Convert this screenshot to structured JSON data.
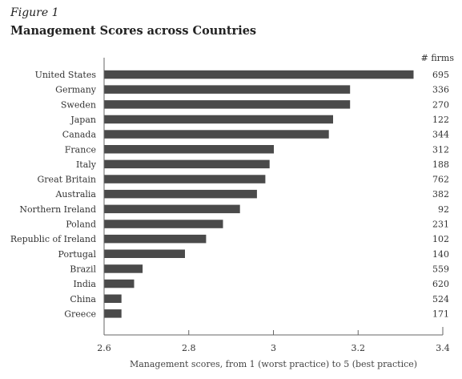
{
  "figure": {
    "label": "Figure 1",
    "title": "Management Scores across Countries"
  },
  "chart_data": {
    "type": "bar",
    "orientation": "horizontal",
    "categories": [
      "United States",
      "Germany",
      "Sweden",
      "Japan",
      "Canada",
      "France",
      "Italy",
      "Great Britain",
      "Australia",
      "Northern Ireland",
      "Poland",
      "Republic of Ireland",
      "Portugal",
      "Brazil",
      "India",
      "China",
      "Greece"
    ],
    "values": [
      3.33,
      3.18,
      3.18,
      3.14,
      3.13,
      3.0,
      2.99,
      2.98,
      2.96,
      2.92,
      2.88,
      2.84,
      2.79,
      2.69,
      2.67,
      2.64,
      2.64
    ],
    "firm_counts": [
      "695",
      "336",
      "270",
      "122",
      "344",
      "312",
      "188",
      "762",
      "382",
      "92",
      "231",
      "102",
      "140",
      "559",
      "620",
      "524",
      "171"
    ],
    "counts_header": "# firms",
    "xlabel": "Management scores, from 1 (worst practice) to 5 (best practice)",
    "xlim": [
      2.6,
      3.4
    ],
    "xticks": [
      "2.6",
      "2.8",
      "3",
      "3.2",
      "3.4"
    ],
    "bar_color": "#4a4a4a",
    "grid": false
  }
}
